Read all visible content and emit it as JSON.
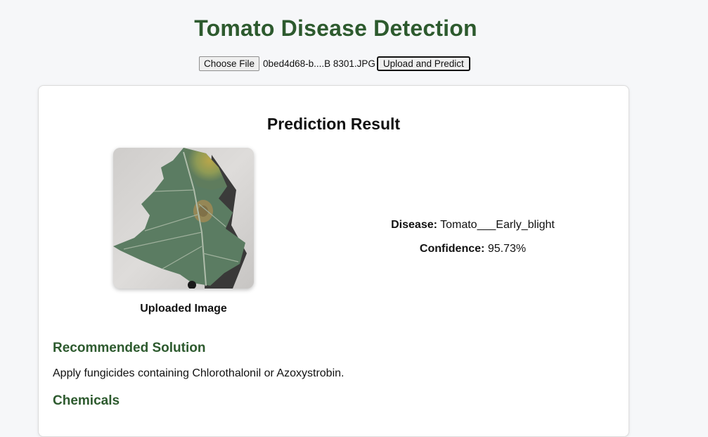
{
  "header": {
    "title": "Tomato Disease Detection"
  },
  "upload": {
    "choose_file_label": "Choose File",
    "file_name": "0bed4d68-b....B 8301.JPG",
    "submit_label": "Upload and Predict"
  },
  "result": {
    "heading": "Prediction Result",
    "image_caption": "Uploaded Image",
    "disease_label": "Disease:",
    "disease_value": "Tomato___Early_blight",
    "confidence_label": "Confidence:",
    "confidence_value": "95.73%",
    "solution_heading": "Recommended Solution",
    "solution_text": "Apply fungicides containing Chlorothalonil or Azoxystrobin.",
    "chemicals_heading": "Chemicals"
  },
  "colors": {
    "accent_green": "#2d5a2e",
    "page_background": "#f6f7f9",
    "card_background": "#ffffff"
  }
}
